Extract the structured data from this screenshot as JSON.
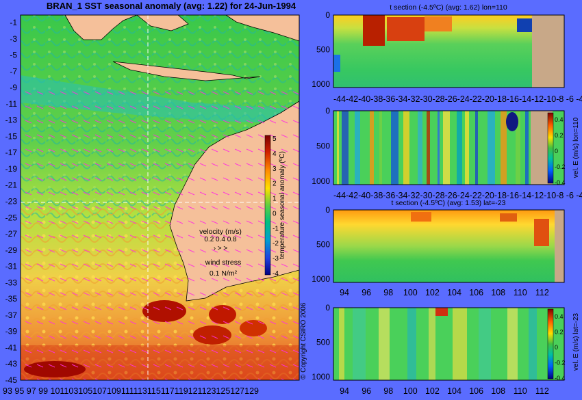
{
  "main_map": {
    "title": "BRAN_1 SST seasonal anomaly (avg: 1.22) for 24-Jun-1994",
    "lat_ticks": [
      "-1",
      "-3",
      "-5",
      "-7",
      "-9",
      "-11",
      "-13",
      "-15",
      "-17",
      "-19",
      "-21",
      "-23",
      "-25",
      "-27",
      "-29",
      "-31",
      "-33",
      "-35",
      "-37",
      "-39",
      "-41",
      "-43",
      "-45"
    ],
    "lon_ticks": [
      "93",
      "95",
      "97",
      "99",
      "101",
      "103",
      "105",
      "107",
      "109",
      "111",
      "113",
      "115",
      "117",
      "119",
      "121",
      "123",
      "125",
      "127",
      "129"
    ],
    "lon_ticks_display": [
      "93",
      "95",
      "97",
      "99",
      "101103105107109111113115117119121123125127129"
    ],
    "colorbar": {
      "label": "temperature seasonal anomaly (ºC)",
      "ticks": [
        "5",
        "4",
        "3",
        "2",
        "1",
        "0",
        "-1",
        "-2",
        "-3",
        "-4"
      ],
      "range": [
        -4,
        5
      ]
    },
    "velocity_legend": {
      "title": "velocity (m/s)",
      "values": "0.2 0.4 0.8",
      "wind_title": "wind stress",
      "wind_value": "0.1 N/m²"
    },
    "copyright": "© Copyright CSIRO 2006"
  },
  "panels": [
    {
      "title": "t section (-4.5ºC) (avg: 1.62) lon=110",
      "x_ticks": [
        "-44",
        "-42",
        "-40",
        "-38",
        "-36",
        "-34",
        "-32",
        "-30",
        "-28",
        "-26",
        "-24",
        "-22",
        "-20",
        "-18",
        "-16",
        "-14",
        "-12",
        "-10",
        "-8",
        "-6",
        "-4"
      ],
      "x_label_display": "-44-42-40-38-36-34-32-30-28-26-24-22-20-18-16-14-12-10-8 -6 -4",
      "y_ticks": [
        "0",
        "500",
        "1000"
      ],
      "side_label": ""
    },
    {
      "title": "",
      "x_ticks": [
        "-44",
        "-42",
        "-40",
        "-38",
        "-36",
        "-34",
        "-32",
        "-30",
        "-28",
        "-26",
        "-24",
        "-22",
        "-20",
        "-18",
        "-16",
        "-14",
        "-12",
        "-10",
        "-8",
        "-6",
        "-4"
      ],
      "x_label_display": "-44-42-40-38-36-34-32-30-28-26-24-22-20-18-16-14-12-10-8 -6 -4",
      "y_ticks": [
        "0",
        "500",
        "1000"
      ],
      "side_label": "vel. E (m/s) lon=110",
      "colorbar_ticks": [
        "0.4",
        "0.2",
        "0",
        "-0.2",
        "-0.4"
      ]
    },
    {
      "title": "t section (-4.5ºC) (avg: 1.53) lat=-23",
      "x_ticks": [
        "94",
        "96",
        "98",
        "100",
        "102",
        "104",
        "106",
        "108",
        "110",
        "112"
      ],
      "y_ticks": [
        "0",
        "500",
        "1000"
      ],
      "side_label": ""
    },
    {
      "title": "",
      "x_ticks": [
        "94",
        "96",
        "98",
        "100",
        "102",
        "104",
        "106",
        "108",
        "110",
        "112"
      ],
      "y_ticks": [
        "0",
        "500",
        "1000"
      ],
      "side_label": "vel. E (m/s) lat=-23",
      "colorbar_ticks": [
        "0.4",
        "0.2",
        "0",
        "-0.2",
        "-0.4"
      ]
    }
  ],
  "chart_data": [
    {
      "type": "heatmap",
      "title": "BRAN_1 SST seasonal anomaly (avg: 1.22) for 24-Jun-1994",
      "x_range": [
        93,
        130
      ],
      "y_range": [
        -45,
        0
      ],
      "colorbar_range": [
        -4,
        5
      ],
      "colorbar_label": "temperature seasonal anomaly (ºC)"
    },
    {
      "type": "heatmap",
      "title": "t section (-4.5ºC) (avg: 1.62) lon=110",
      "x_range": [
        -45,
        -3
      ],
      "y_range": [
        1050,
        0
      ]
    },
    {
      "type": "heatmap",
      "title": "",
      "x_range": [
        -45,
        -3
      ],
      "y_range": [
        1050,
        0
      ],
      "colorbar_label": "vel. E (m/s) lon=110",
      "colorbar_range": [
        -0.4,
        0.4
      ]
    },
    {
      "type": "heatmap",
      "title": "t section (-4.5ºC) (avg: 1.53) lat=-23",
      "x_range": [
        93,
        114
      ],
      "y_range": [
        1050,
        0
      ]
    },
    {
      "type": "heatmap",
      "title": "",
      "x_range": [
        93,
        114
      ],
      "y_range": [
        1050,
        0
      ],
      "colorbar_label": "vel. E (m/s) lat=-23",
      "colorbar_range": [
        -0.4,
        0.4
      ]
    }
  ]
}
